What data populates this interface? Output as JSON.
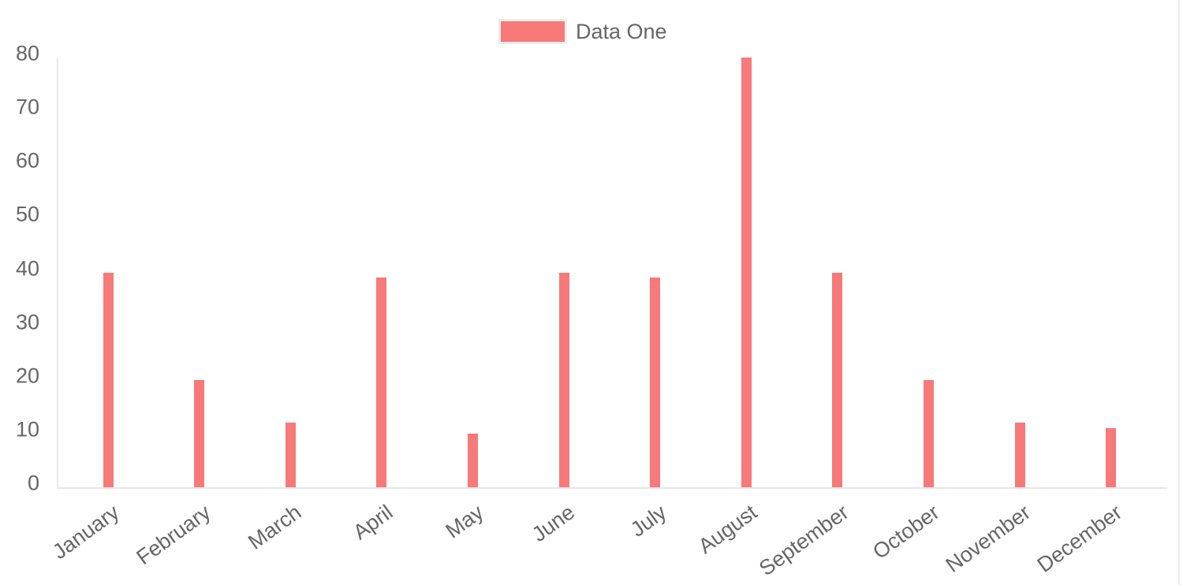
{
  "legend": {
    "items": [
      {
        "label": "Data One",
        "swatch_color": "#f87979",
        "swatch_border_color": "#ededed"
      }
    ],
    "text_color": "#666666"
  },
  "chart_data": {
    "type": "bar",
    "title": "",
    "categories": [
      "January",
      "February",
      "March",
      "April",
      "May",
      "June",
      "July",
      "August",
      "September",
      "October",
      "November",
      "December"
    ],
    "series": [
      {
        "name": "Data One",
        "color": "#f87979",
        "values": [
          40,
          20,
          12,
          39,
          10,
          40,
          39,
          80,
          40,
          20,
          12,
          11
        ]
      }
    ],
    "xlabel": "",
    "ylabel": "",
    "ylim": [
      0,
      80
    ],
    "yticks": [
      0,
      10,
      20,
      30,
      40,
      50,
      60,
      70,
      80
    ],
    "grid": false,
    "legend_position": "top",
    "axis_line_color": "#e7e7e7",
    "tick_text_color": "#666666"
  },
  "window": {
    "right_divider_color": "#e9e9e9"
  }
}
